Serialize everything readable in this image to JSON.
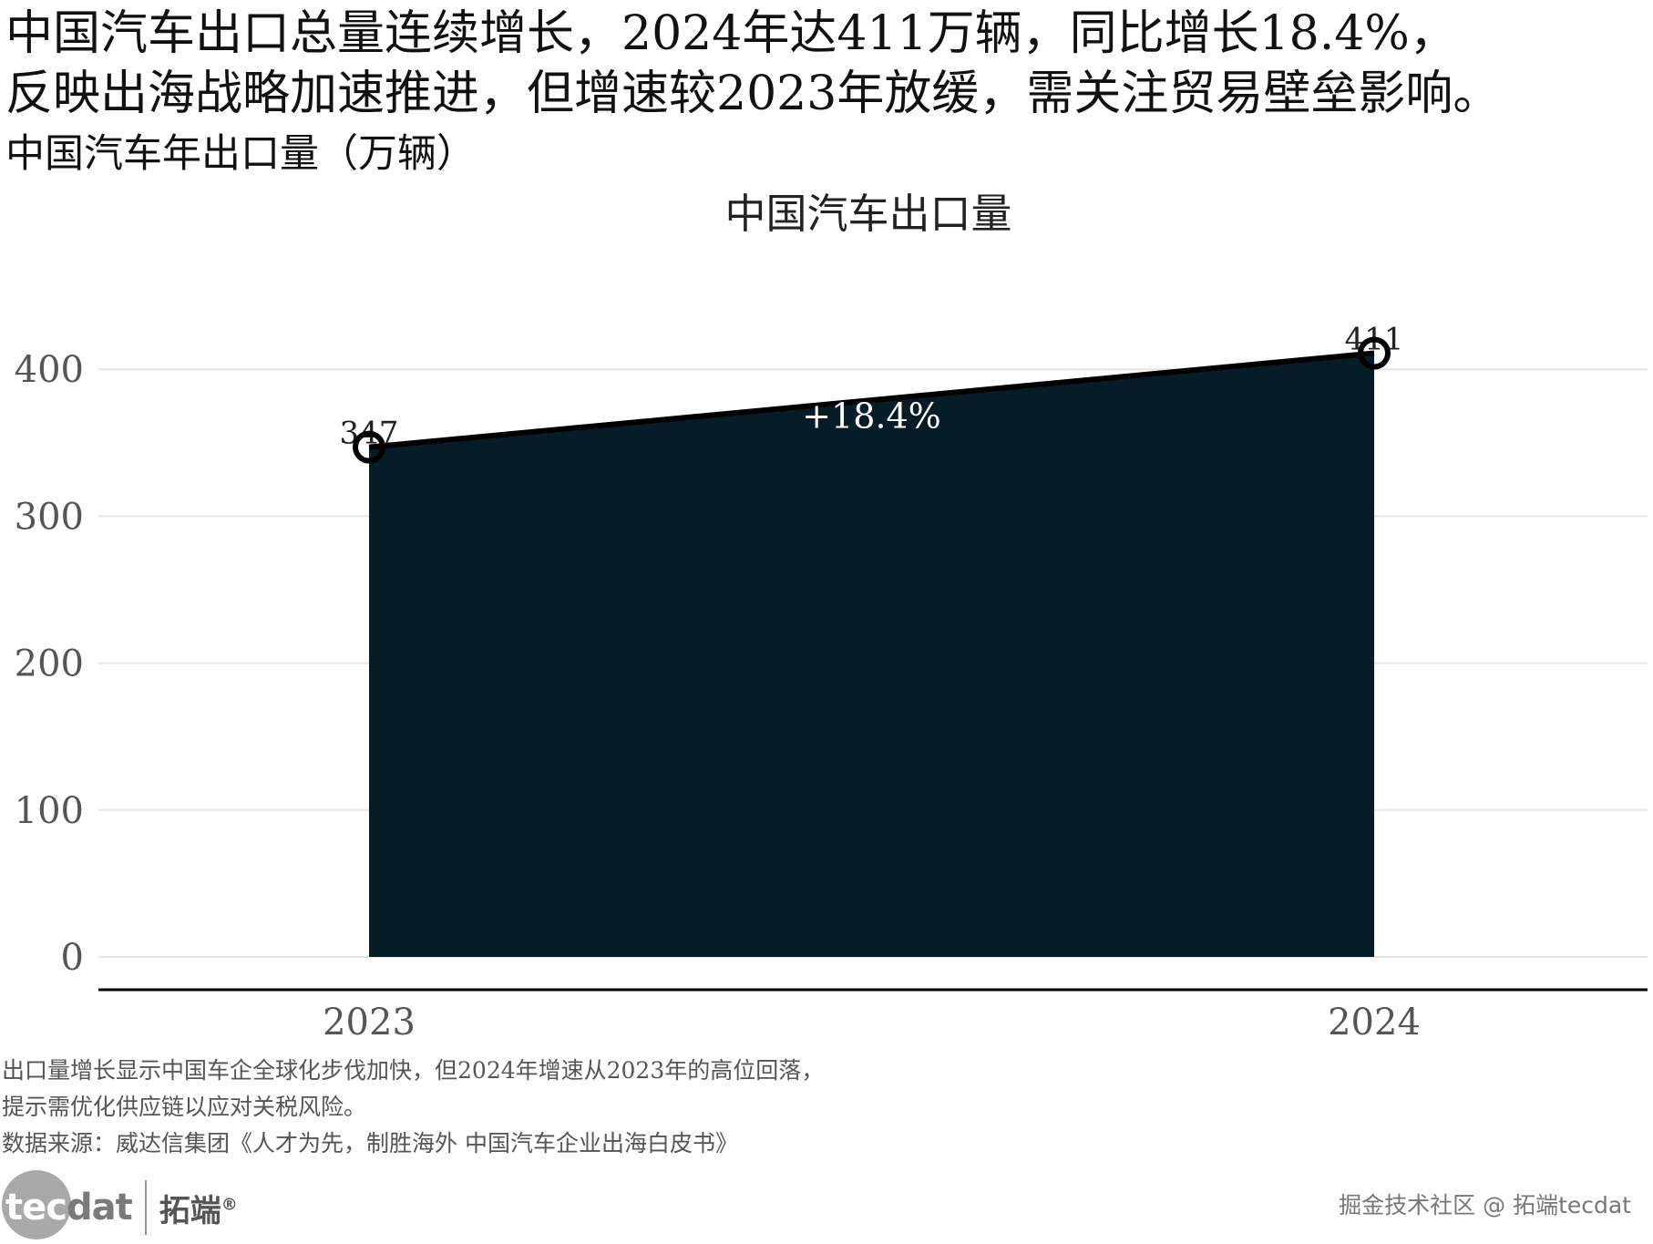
{
  "headline": {
    "line1": "中国汽车出口总量连续增长，2024年达411万辆，同比增长18.4%，",
    "line2": "反映出海战略加速推进，但增速较2023年放缓，需关注贸易壁垒影响。"
  },
  "subtitle": "中国汽车年出口量（万辆）",
  "chart_data": {
    "type": "area",
    "title": "中国汽车出口量",
    "xlabel": "",
    "ylabel": "",
    "categories": [
      "2023",
      "2024"
    ],
    "values": [
      347,
      411
    ],
    "data_labels": [
      "347",
      "411"
    ],
    "annotation": "+18.4%",
    "ylim": [
      0,
      425
    ],
    "yticks": [
      0,
      100,
      200,
      300,
      400
    ],
    "grid": "horizontal",
    "legend": "none",
    "colors": {
      "fill": "#061c29",
      "line": "#000000",
      "grid": "#e6e6e6",
      "annotation_text": "#ffffff"
    }
  },
  "caption": {
    "line1": "出口量增长显示中国车企全球化步伐加快，但2024年增速从2023年的高位回落，",
    "line2": "提示需优化供应链以应对关税风险。",
    "source": "数据来源：威达信集团《人才为先，制胜海外 中国汽车企业出海白皮书》"
  },
  "logo": {
    "mark_tec": "tec",
    "mark_dat": "dat",
    "name_cn": "拓端",
    "registered": "®"
  },
  "watermark": "掘金技术社区 @ 拓端tecdat"
}
